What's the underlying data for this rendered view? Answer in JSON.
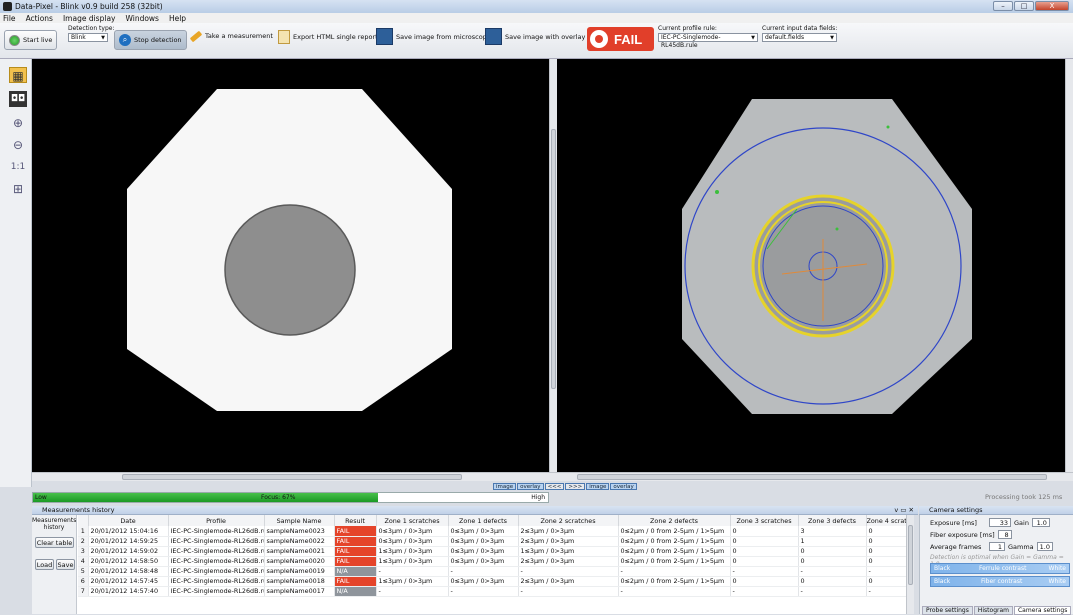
{
  "window": {
    "title": "Data-Pixel - Blink v0.9 build 258 (32bit)",
    "min": "–",
    "max": "□",
    "close": "X"
  },
  "menu": [
    "File",
    "Actions",
    "Image display",
    "Windows",
    "Help"
  ],
  "toolbar": {
    "start_live": "Start live",
    "detection_type_label": "Detection type:",
    "detection_type_value": "Blink",
    "stop_detection": "Stop detection",
    "take_measurement": "Take a measurement",
    "export_html": "Export HTML single report",
    "save_image_microscope": "Save image from microscope",
    "save_image_overlay": "Save image with overlay",
    "result_badge": "FAIL",
    "profile_rule_label": "Current profile rule:",
    "profile_rule_value": "IEC-PC-Singlemode-RL45dB.rule",
    "input_fields_label": "Current input data fields:",
    "input_fields_value": "default.fields",
    "accent_fail": "#e13f2a"
  },
  "viewer_tabs": {
    "left": [
      "image",
      "overlay"
    ],
    "right": [
      "image",
      "overlay"
    ],
    "nav": [
      "<<<",
      ">>>"
    ]
  },
  "focus": {
    "low": "Low",
    "label": "Focus: 67%",
    "high": "High",
    "value_percent": 67
  },
  "processing_text": "Processing took 125 ms",
  "history": {
    "title": "Measurements history",
    "side_label": "Measurements history",
    "clear_table": "Clear table",
    "load": "Load",
    "save": "Save",
    "columns": [
      "",
      "Date",
      "Profile",
      "Sample Name",
      "Result",
      "Zone 1 scratches",
      "Zone 1 defects",
      "Zone 2 scratches",
      "Zone 2 defects",
      "Zone 3 scratches",
      "Zone 3 defects",
      "Zone 4 scratc"
    ],
    "rows": [
      [
        "1",
        "20/01/2012 15:04:16",
        "IEC-PC-Singlemode-RL26dB.rule",
        "sampleName0023",
        "FAIL",
        "0≤3µm / 0>3µm",
        "0≤3µm / 0>3µm",
        "2≤3µm / 0>3µm",
        "0≤2µm / 0 from 2-5µm / 1>5µm",
        "0",
        "3",
        "0"
      ],
      [
        "2",
        "20/01/2012 14:59:25",
        "IEC-PC-Singlemode-RL26dB.rule",
        "sampleName0022",
        "FAIL",
        "0≤3µm / 0>3µm",
        "0≤3µm / 0>3µm",
        "2≤3µm / 0>3µm",
        "0≤2µm / 0 from 2-5µm / 1>5µm",
        "0",
        "1",
        "0"
      ],
      [
        "3",
        "20/01/2012 14:59:02",
        "IEC-PC-Singlemode-RL26dB.rule",
        "sampleName0021",
        "FAIL",
        "1≤3µm / 0>3µm",
        "0≤3µm / 0>3µm",
        "1≤3µm / 0>3µm",
        "0≤2µm / 0 from 2-5µm / 1>5µm",
        "0",
        "0",
        "0"
      ],
      [
        "4",
        "20/01/2012 14:58:50",
        "IEC-PC-Singlemode-RL26dB.rule",
        "sampleName0020",
        "FAIL",
        "1≤3µm / 0>3µm",
        "0≤3µm / 0>3µm",
        "2≤3µm / 0>3µm",
        "0≤2µm / 0 from 2-5µm / 1>5µm",
        "0",
        "0",
        "0"
      ],
      [
        "5",
        "20/01/2012 14:58:48",
        "IEC-PC-Singlemode-RL26dB.rule",
        "sampleName0019",
        "N/A",
        "-",
        "-",
        "-",
        "-",
        "-",
        "-",
        "-"
      ],
      [
        "6",
        "20/01/2012 14:57:45",
        "IEC-PC-Singlemode-RL26dB.rule",
        "sampleName0018",
        "FAIL",
        "1≤3µm / 0>3µm",
        "0≤3µm / 0>3µm",
        "2≤3µm / 0>3µm",
        "0≤2µm / 0 from 2-5µm / 1>5µm",
        "0",
        "0",
        "0"
      ],
      [
        "7",
        "20/01/2012 14:57:40",
        "IEC-PC-Singlemode-RL26dB.rule",
        "sampleName0017",
        "N/A",
        "-",
        "-",
        "-",
        "-",
        "-",
        "-",
        "-"
      ]
    ]
  },
  "camera": {
    "title": "Camera settings",
    "exposure_label": "Exposure [ms]",
    "exposure_value": "33",
    "gain_label": "Gain",
    "gain_value": "1.0",
    "fiber_exposure_label": "Fiber exposure [ms]",
    "fiber_exposure_value": "8",
    "avg_frames_label": "Average frames",
    "avg_frames_value": "1",
    "gamma_label": "Gamma",
    "gamma_value": "1.0",
    "note": "Detection is optimal when Gain = Gamma = 1.0",
    "ferrule": {
      "black": "Black",
      "label": "Ferrule contrast",
      "white": "White"
    },
    "fiber": {
      "black": "Black",
      "label": "Fiber contrast",
      "white": "White"
    },
    "tabs": [
      "Probe settings",
      "Histogram",
      "Camera settings"
    ]
  }
}
